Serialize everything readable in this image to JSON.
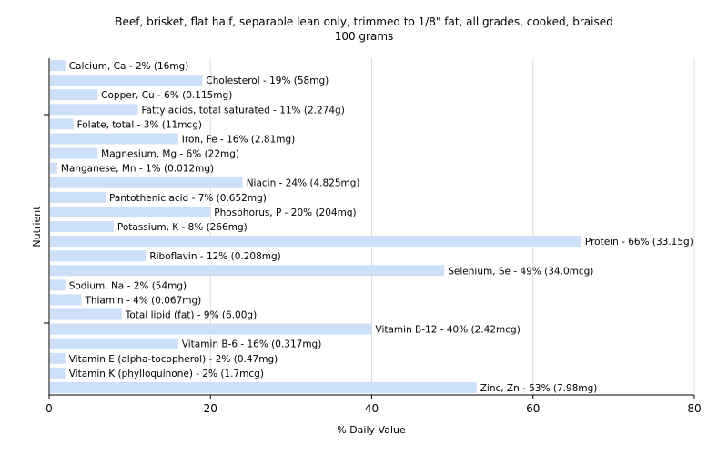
{
  "chart_data": {
    "type": "bar",
    "orientation": "horizontal",
    "title": "Beef, brisket, flat half, separable lean only, trimmed to 1/8\" fat, all grades, cooked, braised",
    "subtitle": "100 grams",
    "xlabel": "% Daily Value",
    "ylabel": "Nutrient",
    "xlim": [
      0,
      80
    ],
    "xticks": [
      "0",
      "20",
      "40",
      "60",
      "80"
    ],
    "grid": "vertical",
    "bar_color": "#cce0fa",
    "categories": [
      "Calcium, Ca",
      "Cholesterol",
      "Copper, Cu",
      "Fatty acids, total saturated",
      "Folate, total",
      "Iron, Fe",
      "Magnesium, Mg",
      "Manganese, Mn",
      "Niacin",
      "Pantothenic acid",
      "Phosphorus, P",
      "Potassium, K",
      "Protein",
      "Riboflavin",
      "Selenium, Se",
      "Sodium, Na",
      "Thiamin",
      "Total lipid (fat)",
      "Vitamin B-12",
      "Vitamin B-6",
      "Vitamin E (alpha-tocopherol)",
      "Vitamin K (phylloquinone)",
      "Zinc, Zn"
    ],
    "values": [
      2,
      19,
      6,
      11,
      3,
      16,
      6,
      1,
      24,
      7,
      20,
      8,
      66,
      12,
      49,
      2,
      4,
      9,
      40,
      16,
      2,
      2,
      53
    ],
    "labels": [
      "Calcium, Ca - 2% (16mg)",
      "Cholesterol - 19% (58mg)",
      "Copper, Cu - 6% (0.115mg)",
      "Fatty acids, total saturated - 11% (2.274g)",
      "Folate, total - 3% (11mcg)",
      "Iron, Fe - 16% (2.81mg)",
      "Magnesium, Mg - 6% (22mg)",
      "Manganese, Mn - 1% (0.012mg)",
      "Niacin - 24% (4.825mg)",
      "Pantothenic acid - 7% (0.652mg)",
      "Phosphorus, P - 20% (204mg)",
      "Potassium, K - 8% (266mg)",
      "Protein - 66% (33.15g)",
      "Riboflavin - 12% (0.208mg)",
      "Selenium, Se - 49% (34.0mcg)",
      "Sodium, Na - 2% (54mg)",
      "Thiamin - 4% (0.067mg)",
      "Total lipid (fat) - 9% (6.00g)",
      "Vitamin B-12 - 40% (2.42mcg)",
      "Vitamin B-6 - 16% (0.317mg)",
      "Vitamin E (alpha-tocopherol) - 2% (0.47mg)",
      "Vitamin K (phylloquinone) - 2% (1.7mcg)",
      "Zinc, Zn - 53% (7.98mg)"
    ]
  }
}
